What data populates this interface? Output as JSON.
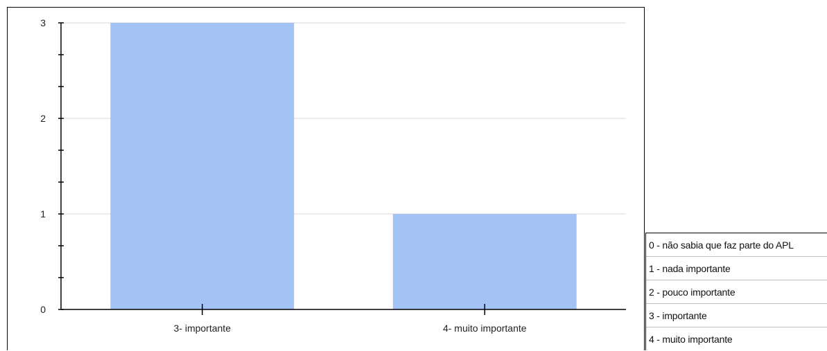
{
  "chart_data": {
    "type": "bar",
    "categories": [
      "3- importante",
      "4- muito importante"
    ],
    "values": [
      3,
      1
    ],
    "ylim": [
      0,
      3
    ],
    "yticks": [
      0,
      1,
      2,
      3
    ],
    "grid": true,
    "colors": {
      "bar": "#a4c2f4",
      "grid": "#d9d9d9",
      "axis": "#000000",
      "text": "#222222"
    }
  },
  "scale_legend": {
    "items": [
      "0 - não sabia que faz parte do APL",
      "1 - nada importante",
      "2 - pouco importante",
      "3 - importante",
      "4 - muito importante"
    ]
  }
}
